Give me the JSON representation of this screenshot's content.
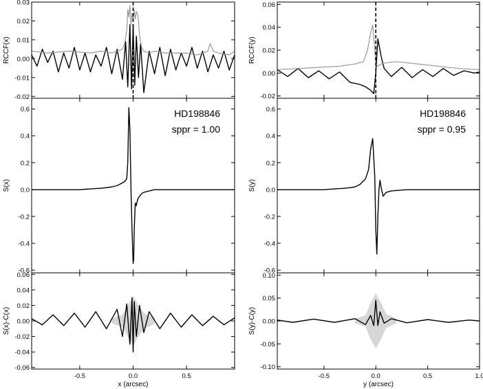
{
  "figure": {
    "annotations": {
      "left": {
        "star": "HD198846",
        "sppr": "sppr = 1.00"
      },
      "right": {
        "star": "HD198846",
        "sppr": "sppr = 0.95"
      }
    }
  },
  "chart_data": [
    {
      "id": "rccf-x",
      "type": "line",
      "ylabel": "RCCF(x)",
      "xlim": [
        -0.95,
        0.95
      ],
      "ylim": [
        -0.021,
        0.03
      ],
      "yticks": [
        -0.02,
        -0.01,
        0.0,
        0.01,
        0.02,
        0.03
      ],
      "yticklabels": [
        "-0.02",
        "-0.01",
        "0.00",
        "0.01",
        "0.02",
        "0.03"
      ],
      "xticks": [
        -0.5,
        0.0,
        0.5
      ],
      "vline_dashed": 0.0,
      "series": [
        {
          "color": "#000000",
          "x": [
            -0.95,
            -0.9,
            -0.85,
            -0.8,
            -0.75,
            -0.7,
            -0.65,
            -0.6,
            -0.55,
            -0.5,
            -0.45,
            -0.4,
            -0.35,
            -0.3,
            -0.25,
            -0.2,
            -0.15,
            -0.1,
            -0.07,
            -0.05,
            -0.03,
            -0.015,
            0.0,
            0.015,
            0.03,
            0.05,
            0.07,
            0.1,
            0.15,
            0.2,
            0.25,
            0.3,
            0.35,
            0.4,
            0.45,
            0.5,
            0.55,
            0.6,
            0.65,
            0.7,
            0.75,
            0.8,
            0.85,
            0.9,
            0.95
          ],
          "y": [
            0.002,
            -0.004,
            0.005,
            -0.002,
            0.004,
            -0.007,
            0.003,
            -0.005,
            0.006,
            -0.006,
            0.003,
            -0.007,
            0.002,
            -0.004,
            0.006,
            -0.008,
            0.005,
            -0.011,
            0.009,
            -0.015,
            0.018,
            -0.016,
            0.018,
            -0.014,
            0.012,
            -0.01,
            0.008,
            -0.018,
            0.004,
            -0.008,
            0.006,
            -0.009,
            0.005,
            -0.006,
            0.003,
            -0.004,
            0.006,
            -0.005,
            0.004,
            -0.007,
            0.002,
            -0.005,
            0.004,
            -0.006,
            0.002
          ]
        },
        {
          "color": "#999999",
          "x": [
            -0.95,
            -0.8,
            -0.6,
            -0.4,
            -0.3,
            -0.2,
            -0.15,
            -0.1,
            -0.08,
            -0.06,
            -0.05,
            -0.04,
            -0.03,
            -0.02,
            -0.01,
            0.0,
            0.01,
            0.02,
            0.03,
            0.04,
            0.05,
            0.06,
            0.08,
            0.1,
            0.15,
            0.2,
            0.3,
            0.4,
            0.5,
            0.6,
            0.7,
            0.72,
            0.75,
            0.8,
            0.9,
            0.95
          ],
          "y": [
            0.004,
            0.003,
            0.004,
            0.003,
            0.004,
            0.003,
            0.004,
            0.005,
            0.008,
            0.015,
            0.026,
            0.022,
            0.028,
            0.018,
            0.024,
            0.02,
            0.026,
            0.021,
            0.025,
            0.024,
            0.02,
            0.012,
            0.006,
            0.004,
            0.003,
            0.004,
            0.003,
            0.003,
            0.003,
            0.002,
            0.004,
            0.008,
            0.004,
            0.003,
            0.002,
            0.004
          ]
        }
      ]
    },
    {
      "id": "sx",
      "type": "line",
      "ylabel": "S(x)",
      "xlim": [
        -0.95,
        0.95
      ],
      "ylim": [
        -0.62,
        0.68
      ],
      "yticks": [
        -0.6,
        -0.4,
        -0.2,
        0.0,
        0.2,
        0.4,
        0.6
      ],
      "yticklabels": [
        "-0.6",
        "-0.4",
        "-0.2",
        "0.0",
        "0.2",
        "0.4",
        "0.6"
      ],
      "xticks": [
        -0.5,
        0.0,
        0.5
      ],
      "series": [
        {
          "color": "#000000",
          "x": [
            -0.95,
            -0.5,
            -0.3,
            -0.2,
            -0.15,
            -0.1,
            -0.08,
            -0.06,
            -0.05,
            -0.04,
            -0.03,
            -0.02,
            -0.01,
            0.0,
            0.005,
            0.01,
            0.02,
            0.03,
            0.04,
            0.05,
            0.06,
            0.08,
            0.1,
            0.15,
            0.2,
            0.3,
            0.5,
            0.95
          ],
          "y": [
            0.0,
            0.0,
            0.01,
            0.02,
            0.03,
            0.05,
            0.06,
            0.08,
            0.2,
            0.61,
            0.45,
            0.0,
            -0.3,
            -0.55,
            -0.52,
            -0.3,
            -0.1,
            -0.12,
            -0.08,
            -0.06,
            -0.05,
            -0.03,
            -0.02,
            -0.01,
            0.0,
            0.0,
            0.0,
            0.0
          ]
        }
      ]
    },
    {
      "id": "resid-x",
      "type": "line",
      "ylabel": "S(x)-C(x)",
      "xlabel": "x (arcsec)",
      "xlim": [
        -0.95,
        0.95
      ],
      "ylim": [
        -0.062,
        0.062
      ],
      "yticks": [
        -0.06,
        -0.04,
        -0.02,
        0.0,
        0.02,
        0.04,
        0.06
      ],
      "yticklabels": [
        "-0.06",
        "-0.04",
        "-0.02",
        "0.00",
        "0.02",
        "0.04",
        "0.06"
      ],
      "xticks": [
        -0.5,
        0.0,
        0.5
      ],
      "xticklabels": [
        "-0.5",
        "0.0",
        "0.5"
      ],
      "band": {
        "x": [
          -0.2,
          -0.1,
          -0.05,
          0.0,
          0.05,
          0.1,
          0.2
        ],
        "half_width": [
          0.003,
          0.008,
          0.02,
          0.032,
          0.02,
          0.01,
          0.004
        ]
      },
      "series": [
        {
          "color": "#000000",
          "x": [
            -0.95,
            -0.85,
            -0.75,
            -0.65,
            -0.55,
            -0.45,
            -0.35,
            -0.25,
            -0.15,
            -0.1,
            -0.06,
            -0.03,
            -0.01,
            0.0,
            0.01,
            0.03,
            0.06,
            0.1,
            0.15,
            0.25,
            0.35,
            0.45,
            0.55,
            0.65,
            0.75,
            0.85,
            0.95
          ],
          "y": [
            0.003,
            -0.005,
            0.008,
            -0.006,
            0.01,
            -0.008,
            0.012,
            -0.01,
            0.015,
            -0.02,
            0.022,
            -0.03,
            0.03,
            -0.04,
            0.025,
            -0.02,
            0.02,
            -0.015,
            0.012,
            -0.01,
            0.01,
            -0.008,
            0.008,
            -0.006,
            0.006,
            -0.005,
            0.004
          ]
        }
      ]
    },
    {
      "id": "rccf-y",
      "type": "line",
      "ylabel": "RCCF(y)",
      "xlim": [
        -0.95,
        1.0
      ],
      "ylim": [
        -0.022,
        0.062
      ],
      "yticks": [
        -0.02,
        0.0,
        0.02,
        0.04,
        0.06
      ],
      "yticklabels": [
        "-0.02",
        "0.00",
        "0.02",
        "0.04",
        "0.06"
      ],
      "xticks": [
        -0.5,
        0.0,
        0.5,
        1.0
      ],
      "vline_dashed": 0.0,
      "series": [
        {
          "color": "#000000",
          "x": [
            -0.95,
            -0.85,
            -0.75,
            -0.65,
            -0.55,
            -0.45,
            -0.35,
            -0.25,
            -0.15,
            -0.1,
            -0.05,
            -0.02,
            0.0,
            0.02,
            0.05,
            0.08,
            0.15,
            0.25,
            0.35,
            0.45,
            0.55,
            0.65,
            0.75,
            0.85,
            0.95,
            1.0
          ],
          "y": [
            0.003,
            -0.003,
            0.004,
            -0.004,
            0.002,
            -0.005,
            0.001,
            -0.008,
            -0.01,
            -0.012,
            -0.015,
            -0.018,
            0.0,
            0.03,
            0.015,
            0.004,
            -0.003,
            0.005,
            -0.004,
            0.003,
            -0.003,
            0.004,
            -0.002,
            0.002,
            0.0,
            0.001
          ]
        },
        {
          "color": "#999999",
          "x": [
            -0.95,
            -0.75,
            -0.55,
            -0.35,
            -0.2,
            -0.12,
            -0.08,
            -0.05,
            -0.03,
            -0.01,
            0.0,
            0.02,
            0.05,
            0.1,
            0.2,
            0.4,
            0.6,
            0.8,
            1.0
          ],
          "y": [
            0.003,
            0.004,
            0.005,
            0.006,
            0.008,
            0.01,
            0.02,
            0.035,
            0.042,
            0.02,
            0.008,
            0.006,
            0.008,
            0.009,
            0.01,
            0.008,
            0.006,
            0.004,
            0.003
          ]
        }
      ]
    },
    {
      "id": "sy",
      "type": "line",
      "ylabel": "S(y)",
      "xlim": [
        -0.95,
        1.0
      ],
      "ylim": [
        -0.62,
        0.68
      ],
      "yticks": [
        -0.6,
        -0.4,
        -0.2,
        0.0,
        0.2,
        0.4,
        0.6
      ],
      "yticklabels": [
        "-0.6",
        "-0.4",
        "-0.2",
        "0.0",
        "0.2",
        "0.4",
        "0.6"
      ],
      "xticks": [
        -0.5,
        0.0,
        0.5,
        1.0
      ],
      "series": [
        {
          "color": "#000000",
          "x": [
            -0.95,
            -0.5,
            -0.3,
            -0.2,
            -0.15,
            -0.1,
            -0.07,
            -0.05,
            -0.03,
            -0.01,
            0.0,
            0.01,
            0.02,
            0.03,
            0.04,
            0.05,
            0.07,
            0.1,
            0.15,
            0.3,
            0.5,
            1.0
          ],
          "y": [
            0.0,
            0.0,
            0.01,
            0.02,
            0.04,
            0.08,
            0.15,
            0.3,
            0.38,
            0.1,
            -0.3,
            -0.48,
            -0.2,
            0.0,
            0.07,
            0.02,
            -0.05,
            -0.02,
            -0.01,
            0.0,
            0.0,
            0.0
          ]
        }
      ]
    },
    {
      "id": "resid-y",
      "type": "line",
      "ylabel": "S(y)-C(y)",
      "xlabel": "y (arcsec)",
      "xlim": [
        -0.95,
        1.0
      ],
      "ylim": [
        -0.105,
        0.105
      ],
      "yticks": [
        -0.1,
        -0.05,
        0.0,
        0.05,
        0.1
      ],
      "yticklabels": [
        "-0.10",
        "-0.05",
        "0.00",
        "0.05",
        "0.10"
      ],
      "xticks": [
        -0.5,
        0.0,
        0.5,
        1.0
      ],
      "xticklabels": [
        "-0.5",
        "0.0",
        "0.5",
        "1.0"
      ],
      "band": {
        "x": [
          -0.2,
          -0.1,
          -0.05,
          0.0,
          0.05,
          0.1,
          0.2
        ],
        "half_width": [
          0.005,
          0.012,
          0.04,
          0.06,
          0.04,
          0.015,
          0.005
        ]
      },
      "series": [
        {
          "color": "#000000",
          "x": [
            -0.95,
            -0.8,
            -0.6,
            -0.4,
            -0.2,
            -0.1,
            -0.05,
            -0.02,
            0.0,
            0.02,
            0.04,
            0.08,
            0.15,
            0.3,
            0.5,
            0.7,
            0.9,
            1.0
          ],
          "y": [
            0.002,
            -0.003,
            0.004,
            -0.003,
            0.005,
            -0.008,
            0.012,
            -0.01,
            0.045,
            -0.01,
            0.02,
            -0.005,
            0.005,
            -0.004,
            0.003,
            -0.003,
            0.002,
            0.0
          ]
        }
      ]
    }
  ]
}
